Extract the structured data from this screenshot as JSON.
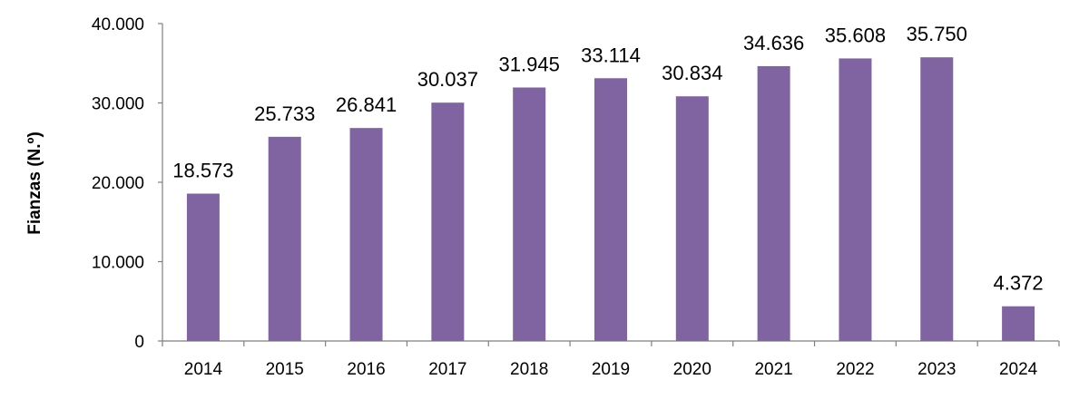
{
  "chart_data": {
    "type": "bar",
    "title": "",
    "xlabel": "",
    "ylabel": "Fianzas (N.º)",
    "categories": [
      "2014",
      "2015",
      "2016",
      "2017",
      "2018",
      "2019",
      "2020",
      "2021",
      "2022",
      "2023",
      "2024"
    ],
    "values": [
      18573,
      25733,
      26841,
      30037,
      31945,
      33114,
      30834,
      34636,
      35608,
      35750,
      4372
    ],
    "data_labels": [
      "18.573",
      "25.733",
      "26.841",
      "30.037",
      "31.945",
      "33.114",
      "30.834",
      "34.636",
      "35.608",
      "35.750",
      "4.372"
    ],
    "ylim": [
      0,
      40000
    ],
    "yticks": [
      0,
      10000,
      20000,
      30000,
      40000
    ],
    "ytick_labels": [
      "0",
      "10.000",
      "20.000",
      "30.000",
      "40.000"
    ],
    "grid": false,
    "legend": "none",
    "bar_color": "#8064a2"
  }
}
